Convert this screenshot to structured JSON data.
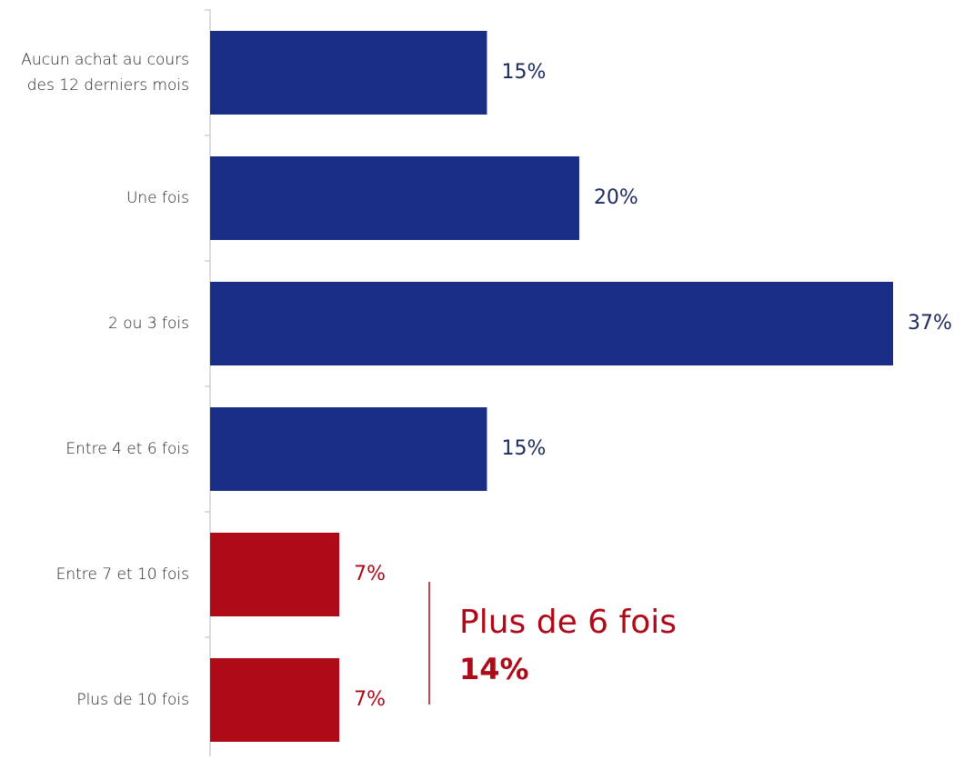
{
  "chart_data": {
    "type": "hbar",
    "categories": [
      "Aucun achat au cours des 12 derniers mois",
      "Une fois",
      "2 ou 3 fois",
      "Entre 4 et 6 fois",
      "Entre 7 et 10 fois",
      "Plus de 10 fois"
    ],
    "values": [
      15,
      20,
      37,
      15,
      7,
      7
    ],
    "value_labels": [
      "15%",
      "20%",
      "37%",
      "15%",
      "7%",
      "7%"
    ],
    "colors": [
      "#1b2e87",
      "#1b2e87",
      "#1b2e87",
      "#1b2e87",
      "#ae0a17",
      "#ae0a17"
    ],
    "label_colors": [
      "#1c2a5e",
      "#1c2a5e",
      "#1c2a5e",
      "#1c2a5e",
      "#ae0a17",
      "#ae0a17"
    ],
    "xlim": [
      0,
      37
    ],
    "annotation": {
      "text": "Plus de 6 fois",
      "value": 14,
      "label": "14%",
      "color": "#ae0a17"
    }
  }
}
